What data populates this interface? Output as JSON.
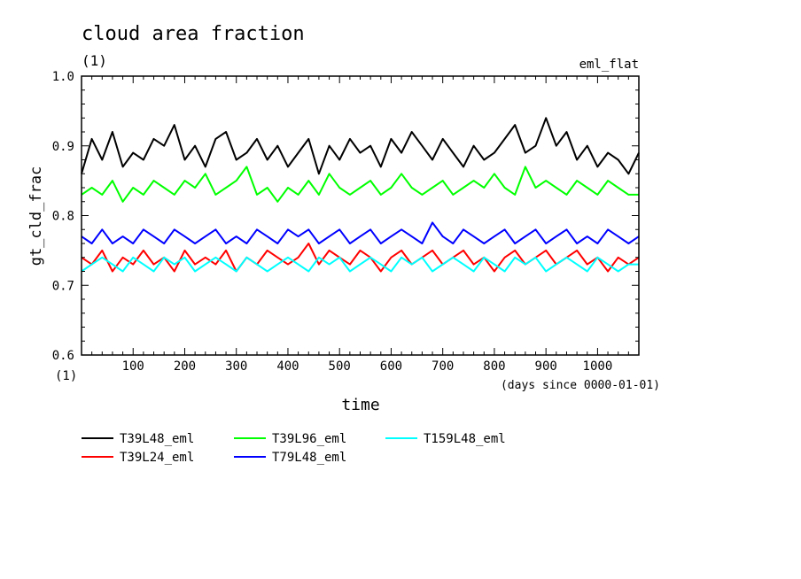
{
  "chart_data": {
    "type": "line",
    "title": "cloud area fraction",
    "title_units": "(1)",
    "subtitle_right": "eml_flat",
    "ylabel": "gt_cld_frac",
    "yunits": "(1)",
    "xlabel": "time",
    "xunits": "(days since 0000-01-01)",
    "xlim": [
      0,
      1080
    ],
    "ylim": [
      0.6,
      1.0
    ],
    "xticks": [
      100,
      200,
      300,
      400,
      500,
      600,
      700,
      800,
      900,
      1000
    ],
    "xtick_labels": [
      "100",
      "200",
      "300",
      "400",
      "500",
      "600",
      "700",
      "800",
      "900",
      "1000"
    ],
    "yticks": [
      0.6,
      0.7,
      0.8,
      0.9,
      1.0
    ],
    "ytick_labels": [
      "0.6",
      "0.7",
      "0.8",
      "0.9",
      "1.0"
    ],
    "grid": false,
    "legend_placement": "below",
    "x": [
      0,
      20,
      40,
      60,
      80,
      100,
      120,
      140,
      160,
      180,
      200,
      220,
      240,
      260,
      280,
      300,
      320,
      340,
      360,
      380,
      400,
      420,
      440,
      460,
      480,
      500,
      520,
      540,
      560,
      580,
      600,
      620,
      640,
      660,
      680,
      700,
      720,
      740,
      760,
      780,
      800,
      820,
      840,
      860,
      880,
      900,
      920,
      940,
      960,
      980,
      1000,
      1020,
      1040,
      1060,
      1080
    ],
    "series": [
      {
        "name": "T39L48_eml",
        "color": "#000000",
        "values": [
          0.86,
          0.91,
          0.88,
          0.92,
          0.87,
          0.89,
          0.88,
          0.91,
          0.9,
          0.93,
          0.88,
          0.9,
          0.87,
          0.91,
          0.92,
          0.88,
          0.89,
          0.91,
          0.88,
          0.9,
          0.87,
          0.89,
          0.91,
          0.86,
          0.9,
          0.88,
          0.91,
          0.89,
          0.9,
          0.87,
          0.91,
          0.89,
          0.92,
          0.9,
          0.88,
          0.91,
          0.89,
          0.87,
          0.9,
          0.88,
          0.89,
          0.91,
          0.93,
          0.89,
          0.9,
          0.94,
          0.9,
          0.92,
          0.88,
          0.9,
          0.87,
          0.89,
          0.88,
          0.86,
          0.89
        ]
      },
      {
        "name": "T39L24_eml",
        "color": "#ff0000",
        "values": [
          0.74,
          0.73,
          0.75,
          0.72,
          0.74,
          0.73,
          0.75,
          0.73,
          0.74,
          0.72,
          0.75,
          0.73,
          0.74,
          0.73,
          0.75,
          0.72,
          0.74,
          0.73,
          0.75,
          0.74,
          0.73,
          0.74,
          0.76,
          0.73,
          0.75,
          0.74,
          0.73,
          0.75,
          0.74,
          0.72,
          0.74,
          0.75,
          0.73,
          0.74,
          0.75,
          0.73,
          0.74,
          0.75,
          0.73,
          0.74,
          0.72,
          0.74,
          0.75,
          0.73,
          0.74,
          0.75,
          0.73,
          0.74,
          0.75,
          0.73,
          0.74,
          0.72,
          0.74,
          0.73,
          0.74
        ]
      },
      {
        "name": "T39L96_eml",
        "color": "#00ff00",
        "values": [
          0.83,
          0.84,
          0.83,
          0.85,
          0.82,
          0.84,
          0.83,
          0.85,
          0.84,
          0.83,
          0.85,
          0.84,
          0.86,
          0.83,
          0.84,
          0.85,
          0.87,
          0.83,
          0.84,
          0.82,
          0.84,
          0.83,
          0.85,
          0.83,
          0.86,
          0.84,
          0.83,
          0.84,
          0.85,
          0.83,
          0.84,
          0.86,
          0.84,
          0.83,
          0.84,
          0.85,
          0.83,
          0.84,
          0.85,
          0.84,
          0.86,
          0.84,
          0.83,
          0.87,
          0.84,
          0.85,
          0.84,
          0.83,
          0.85,
          0.84,
          0.83,
          0.85,
          0.84,
          0.83,
          0.83
        ]
      },
      {
        "name": "T79L48_eml",
        "color": "#0000ff",
        "values": [
          0.77,
          0.76,
          0.78,
          0.76,
          0.77,
          0.76,
          0.78,
          0.77,
          0.76,
          0.78,
          0.77,
          0.76,
          0.77,
          0.78,
          0.76,
          0.77,
          0.76,
          0.78,
          0.77,
          0.76,
          0.78,
          0.77,
          0.78,
          0.76,
          0.77,
          0.78,
          0.76,
          0.77,
          0.78,
          0.76,
          0.77,
          0.78,
          0.77,
          0.76,
          0.79,
          0.77,
          0.76,
          0.78,
          0.77,
          0.76,
          0.77,
          0.78,
          0.76,
          0.77,
          0.78,
          0.76,
          0.77,
          0.78,
          0.76,
          0.77,
          0.76,
          0.78,
          0.77,
          0.76,
          0.77
        ]
      },
      {
        "name": "T159L48_eml",
        "color": "#00ffff",
        "values": [
          0.72,
          0.73,
          0.74,
          0.73,
          0.72,
          0.74,
          0.73,
          0.72,
          0.74,
          0.73,
          0.74,
          0.72,
          0.73,
          0.74,
          0.73,
          0.72,
          0.74,
          0.73,
          0.72,
          0.73,
          0.74,
          0.73,
          0.72,
          0.74,
          0.73,
          0.74,
          0.72,
          0.73,
          0.74,
          0.73,
          0.72,
          0.74,
          0.73,
          0.74,
          0.72,
          0.73,
          0.74,
          0.73,
          0.72,
          0.74,
          0.73,
          0.72,
          0.74,
          0.73,
          0.74,
          0.72,
          0.73,
          0.74,
          0.73,
          0.72,
          0.74,
          0.73,
          0.72,
          0.73,
          0.73
        ]
      }
    ]
  }
}
